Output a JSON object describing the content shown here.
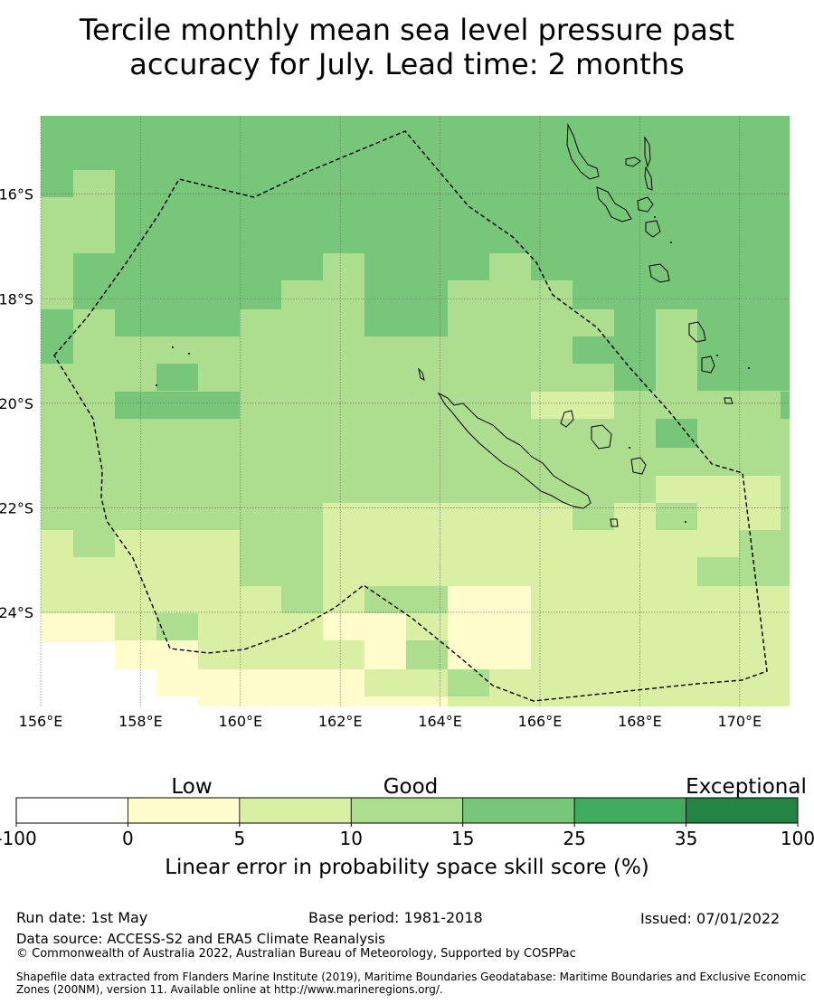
{
  "title_line1": "Tercile monthly mean sea level pressure past",
  "title_line2": "accuracy for July. Lead time: 2 months",
  "map": {
    "lon_min": 156,
    "lon_max": 171,
    "lat_min": -25.8,
    "lat_max": -14.5,
    "lon_ticks": [
      {
        "value": 156,
        "label": "156°E"
      },
      {
        "value": 158,
        "label": "158°E"
      },
      {
        "value": 160,
        "label": "160°E"
      },
      {
        "value": 162,
        "label": "162°E"
      },
      {
        "value": 164,
        "label": "164°E"
      },
      {
        "value": 166,
        "label": "166°E"
      },
      {
        "value": 168,
        "label": "168°E"
      },
      {
        "value": 170,
        "label": "170°E"
      }
    ],
    "lat_ticks": [
      {
        "value": -16,
        "label": "16°S"
      },
      {
        "value": -18,
        "label": "18°S"
      },
      {
        "value": -20,
        "label": "20°S"
      },
      {
        "value": -22,
        "label": "22°S"
      },
      {
        "value": -24,
        "label": "24°S"
      }
    ],
    "grid": true
  },
  "colorbar": {
    "categories": [
      "Low",
      "Good",
      "Exceptional"
    ],
    "bounds": [
      "-100",
      "0",
      "5",
      "10",
      "15",
      "25",
      "35",
      "100"
    ],
    "colors": [
      "#ffffff",
      "#fffdcc",
      "#d9efa3",
      "#addd8e",
      "#78c679",
      "#41ab5d",
      "#238443"
    ],
    "label": "Linear error in probability space skill score (%)"
  },
  "footer": {
    "run_date": "Run date: 1st May",
    "base_period": "Base period: 1981-2018",
    "issued": "Issued: 07/01/2022",
    "data_source": "Data source: ACCESS-S2 and ERA5 Climate Reanalysis",
    "copyright": "© Commonwealth of Australia 2022, Australian Bureau of Meteorology, Supported by COSPPac",
    "shapefile": "Shapefile data extracted from Flanders Marine Institute (2019), Maritime Boundaries Geodatabase: Maritime Boundaries and Exclusive Economic Zones (200NM), version 11. Available online at http://www.marineregions.org/."
  }
}
